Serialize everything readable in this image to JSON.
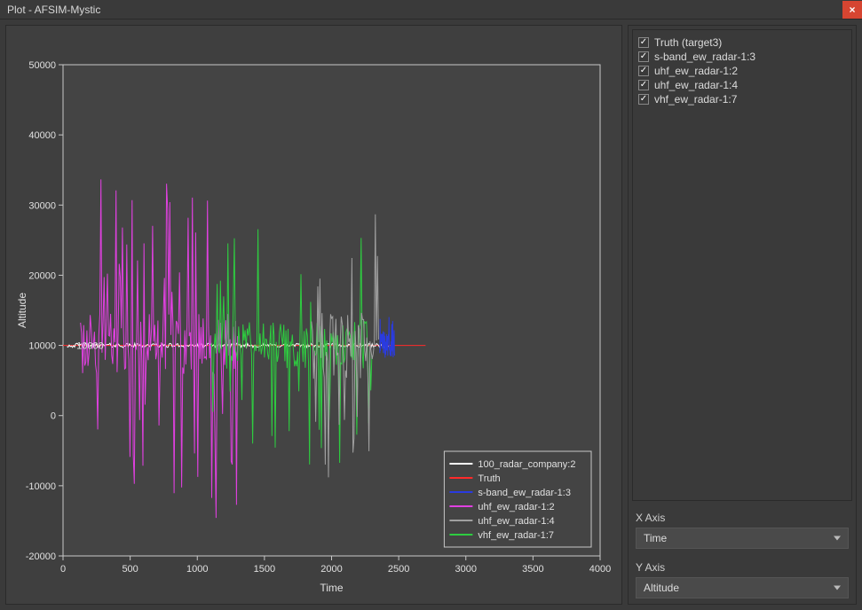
{
  "window": {
    "title": "Plot - AFSIM-Mystic",
    "close_symbol": "×"
  },
  "side": {
    "items": [
      {
        "checked": true,
        "label": "Truth (target3)"
      },
      {
        "checked": true,
        "label": "s-band_ew_radar-1:3"
      },
      {
        "checked": true,
        "label": "uhf_ew_radar-1:2"
      },
      {
        "checked": true,
        "label": "uhf_ew_radar-1:4"
      },
      {
        "checked": true,
        "label": "vhf_ew_radar-1:7"
      }
    ],
    "x_label": "X Axis",
    "x_value": "Time",
    "y_label": "Y Axis",
    "y_value": "Altitude"
  },
  "plot": {
    "bg": "#444444",
    "outer_bg": "#3f3f3f",
    "axis_color": "#c8c8c8",
    "xlabel": "Time",
    "ylabel": "Altitude",
    "xlim": [
      0,
      4000
    ],
    "ylim": [
      -20000,
      50000
    ],
    "xticks": [
      0,
      500,
      1000,
      1500,
      2000,
      2500,
      3000,
      3500,
      4000
    ],
    "yticks": [
      -20000,
      -10000,
      0,
      10000,
      20000,
      30000,
      40000,
      50000
    ],
    "x_tick_step": 500,
    "y_tick_step": 10000,
    "tick_fontsize": 11,
    "label_fontsize": 12,
    "truth": {
      "value": 10000,
      "x_range": [
        0,
        2700
      ],
      "color": "#ff2a2a",
      "width": 1,
      "annot": "10000"
    },
    "series": [
      {
        "name": "100_radar_company:2",
        "color": "#ffffff",
        "width": 1,
        "x_range": [
          30,
          2430
        ],
        "noise_amp": 300,
        "spike_amp": 300,
        "spike_n": 0
      },
      {
        "name": "uhf_ew_radar-1:2",
        "color": "#e040e0",
        "width": 1,
        "x_range": [
          130,
          1300
        ],
        "noise_amp": 4500,
        "spike_amp": 25000,
        "spike_n": 50
      },
      {
        "name": "vhf_ew_radar-1:7",
        "color": "#2ecc40",
        "width": 1,
        "x_range": [
          1100,
          2300
        ],
        "noise_amp": 3500,
        "spike_amp": 17000,
        "spike_n": 30
      },
      {
        "name": "uhf_ew_radar-1:4",
        "color": "#a0a0a0",
        "width": 1,
        "x_range": [
          1850,
          2350
        ],
        "noise_amp": 5000,
        "spike_amp": 21000,
        "spike_n": 20
      },
      {
        "name": "s-band_ew_radar-1:3",
        "color": "#2a3be0",
        "width": 1,
        "x_range": [
          2360,
          2470
        ],
        "noise_amp": 2000,
        "spike_amp": 5000,
        "spike_n": 5
      }
    ],
    "legend": {
      "items": [
        {
          "label": "100_radar_company:2",
          "color": "#ffffff"
        },
        {
          "label": "Truth",
          "color": "#ff2a2a"
        },
        {
          "label": "s-band_ew_radar-1:3",
          "color": "#2a3be0"
        },
        {
          "label": "uhf_ew_radar-1:2",
          "color": "#e040e0"
        },
        {
          "label": "uhf_ew_radar-1:4",
          "color": "#a0a0a0"
        },
        {
          "label": "vhf_ew_radar-1:7",
          "color": "#2ecc40"
        }
      ],
      "box_stroke": "#c8c8c8",
      "text_color": "#e0e0e0",
      "fontsize": 11
    }
  }
}
